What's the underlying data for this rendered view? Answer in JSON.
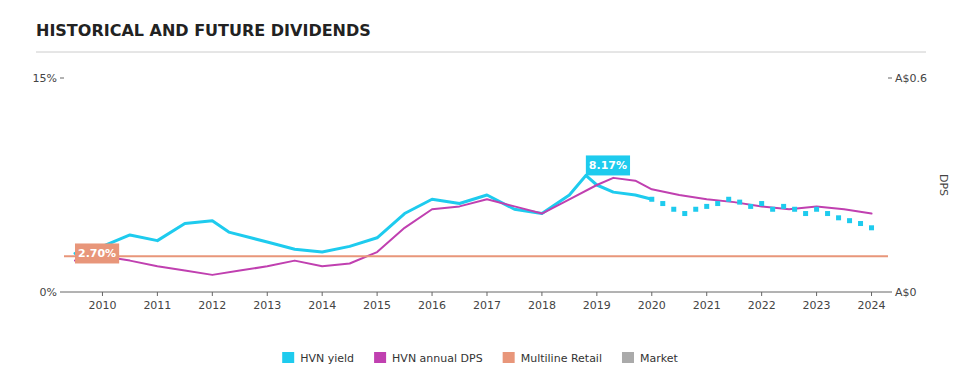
{
  "chart_data": {
    "type": "line",
    "title": "HISTORICAL AND FUTURE DIVIDENDS",
    "xlim": [
      2009.3,
      2024.3
    ],
    "xticks": [
      2010,
      2011,
      2012,
      2013,
      2014,
      2015,
      2016,
      2017,
      2018,
      2019,
      2020,
      2021,
      2022,
      2023,
      2024
    ],
    "ylim": [
      0,
      15
    ],
    "yticks": [
      {
        "value": 0,
        "label": "0%"
      },
      {
        "value": 15,
        "label": "15%"
      }
    ],
    "y2lim": [
      0,
      15
    ],
    "y2ticks": [
      {
        "value": 0,
        "label": "A$0"
      },
      {
        "value": 15,
        "label": "A$0.6"
      }
    ],
    "y2label": "DPS",
    "grid": false,
    "legend": "bottom",
    "series": [
      {
        "name": "HVN yield",
        "type": "line",
        "color": "#1ecbee",
        "line_style": "solid",
        "x": [
          2009.5,
          2010.0,
          2010.5,
          2011.0,
          2011.5,
          2012.0,
          2012.3,
          2012.7,
          2013.0,
          2013.5,
          2014.0,
          2014.5,
          2015.0,
          2015.5,
          2016.0,
          2016.5,
          2017.0,
          2017.5,
          2018.0,
          2018.5,
          2018.8,
          2019.0,
          2019.3,
          2019.7,
          2020.0
        ],
        "values": [
          2.7,
          3.2,
          4.0,
          3.6,
          4.8,
          5.0,
          4.2,
          3.8,
          3.5,
          3.0,
          2.8,
          3.2,
          3.8,
          5.5,
          6.5,
          6.2,
          6.8,
          5.8,
          5.5,
          6.8,
          8.17,
          7.5,
          7.0,
          6.8,
          6.5
        ]
      },
      {
        "name": "HVN annual DPS",
        "type": "line",
        "color": "#c040b0",
        "line_style": "solid",
        "x": [
          2009.5,
          2010.0,
          2010.5,
          2011.0,
          2011.5,
          2012.0,
          2012.5,
          2013.0,
          2013.5,
          2014.0,
          2014.5,
          2015.0,
          2015.5,
          2016.0,
          2016.5,
          2017.0,
          2017.5,
          2018.0,
          2018.5,
          2019.0,
          2019.3,
          2019.7,
          2020.0,
          2020.5,
          2021.0,
          2021.5,
          2022.0,
          2022.5,
          2023.0,
          2023.5,
          2024.0
        ],
        "values": [
          2.2,
          2.5,
          2.2,
          1.8,
          1.5,
          1.2,
          1.5,
          1.8,
          2.2,
          1.8,
          2.0,
          2.8,
          4.5,
          5.8,
          6.0,
          6.5,
          6.0,
          5.5,
          6.5,
          7.5,
          8.0,
          7.8,
          7.2,
          6.8,
          6.5,
          6.3,
          6.0,
          5.8,
          6.0,
          5.8,
          5.5
        ]
      },
      {
        "name": "Multiline Retail",
        "type": "hline",
        "color": "#e8967a",
        "values": [
          2.5
        ]
      },
      {
        "type": "line",
        "color": "#1ecbee",
        "line_style": "none",
        "marker": "square",
        "x": [
          2020.0,
          2020.2,
          2020.4,
          2020.6,
          2020.8,
          2021.0,
          2021.2,
          2021.4,
          2021.6,
          2021.8,
          2022.0,
          2022.2,
          2022.4,
          2022.6,
          2022.8,
          2023.0,
          2023.2,
          2023.4,
          2023.6,
          2023.8,
          2024.0
        ],
        "values": [
          6.5,
          6.2,
          5.8,
          5.5,
          5.8,
          6.0,
          6.2,
          6.5,
          6.3,
          6.0,
          6.2,
          5.8,
          6.0,
          5.8,
          5.5,
          5.8,
          5.5,
          5.2,
          5.0,
          4.8,
          4.5
        ]
      },
      {
        "name": "Market",
        "type": "line",
        "color": "#aaaaaa",
        "x": [],
        "values": []
      }
    ],
    "annotations": [
      {
        "text": "8.17%",
        "x": 2018.8,
        "y": 8.17,
        "color": "#1ecbee"
      },
      {
        "text": "2.70%",
        "x": 2009.5,
        "y": 2.7,
        "color": "#e8967a"
      }
    ]
  }
}
